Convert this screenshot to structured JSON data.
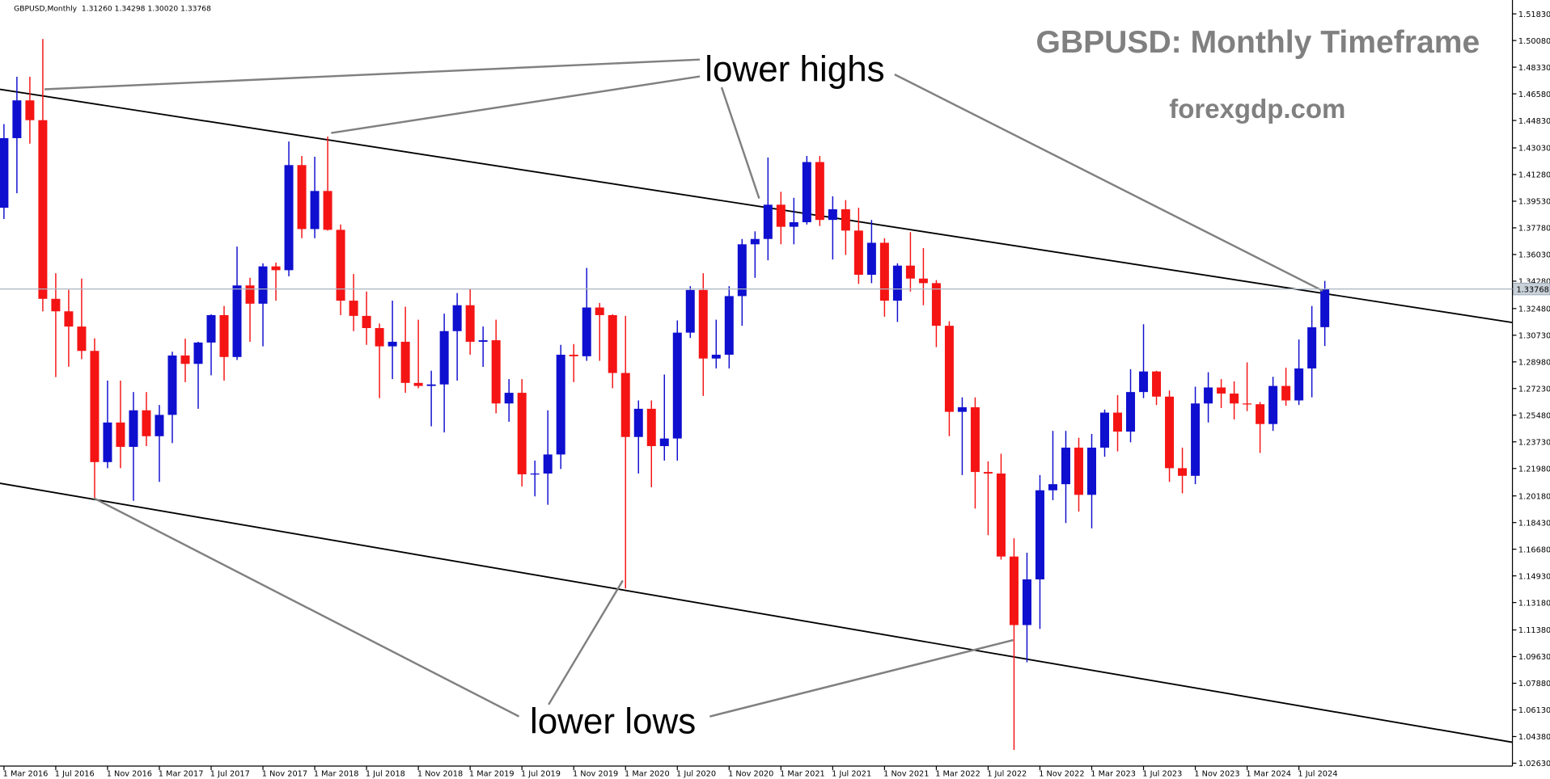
{
  "chart_data": {
    "type": "candlestick",
    "header": "GBPUSD,Monthly  1.31260 1.34298 1.30020 1.33768",
    "title": "GBPUSD: Monthly Timeframe",
    "subtitle": "forexgdp.com",
    "annotations": [
      "lower highs",
      "lower lows"
    ],
    "up_color": "#0f0fcf",
    "down_color": "#f51414",
    "categories": [
      "1 Mar 2016",
      null,
      null,
      null,
      "1 Jul 2016",
      null,
      null,
      null,
      "1 Nov 2016",
      null,
      null,
      null,
      "1 Mar 2017",
      null,
      null,
      null,
      "1 Jul 2017",
      null,
      null,
      null,
      "1 Nov 2017",
      null,
      null,
      null,
      "1 Mar 2018",
      null,
      null,
      null,
      "1 Jul 2018",
      null,
      null,
      null,
      "1 Nov 2018",
      null,
      null,
      null,
      "1 Mar 2019",
      null,
      null,
      null,
      "1 Jul 2019",
      null,
      null,
      null,
      "1 Nov 2019",
      null,
      null,
      null,
      "1 Mar 2020",
      null,
      null,
      null,
      "1 Jul 2020",
      null,
      null,
      null,
      "1 Nov 2020",
      null,
      null,
      null,
      "1 Mar 2021",
      null,
      null,
      null,
      "1 Jul 2021",
      null,
      null,
      null,
      "1 Nov 2021",
      null,
      null,
      null,
      "1 Mar 2022",
      null,
      null,
      null,
      "1 Jul 2022",
      null,
      null,
      null,
      "1 Nov 2022",
      null,
      null,
      null,
      "1 Mar 2023",
      null,
      null,
      null,
      "1 Jul 2023",
      null,
      null,
      null,
      "1 Nov 2023",
      null,
      null,
      null,
      "1 Mar 2024",
      null,
      null,
      null,
      "1 Jul 2024",
      null,
      null
    ],
    "open": [
      1.391,
      1.4367,
      1.4615,
      1.4485,
      1.3312,
      1.323,
      1.313,
      1.297,
      1.224,
      1.25,
      1.234,
      1.258,
      1.241,
      1.255,
      1.294,
      1.2885,
      1.3025,
      1.3205,
      1.293,
      1.34,
      1.328,
      1.3525,
      1.35,
      1.419,
      1.377,
      1.402,
      1.3765,
      1.33,
      1.32,
      1.312,
      1.3,
      1.303,
      1.276,
      1.274,
      1.275,
      1.31,
      1.327,
      1.303,
      1.304,
      1.2625,
      1.2695,
      1.216,
      1.2165,
      1.229,
      1.2945,
      1.2935,
      1.3255,
      1.3205,
      1.2825,
      1.2405,
      1.259,
      1.2345,
      1.2395,
      1.309,
      1.337,
      1.292,
      1.2945,
      1.333,
      1.367,
      1.3705,
      1.393,
      1.3785,
      1.3815,
      1.421,
      1.383,
      1.39,
      1.376,
      1.347,
      1.368,
      1.33,
      1.353,
      1.3445,
      1.3415,
      1.3135,
      1.257,
      1.26,
      1.2175,
      1.2165,
      1.162,
      1.117,
      1.147,
      1.2055,
      1.2095,
      1.2335,
      1.2025,
      1.2335,
      1.2565,
      1.244,
      1.27,
      1.2835,
      1.267,
      1.22,
      1.215,
      1.2625,
      1.273,
      1.269,
      1.2625,
      1.262,
      1.249,
      1.274,
      1.2645,
      1.2855,
      1.3126
    ],
    "high": [
      1.4459,
      1.477,
      1.477,
      1.5018,
      1.348,
      1.3371,
      1.3445,
      1.3053,
      1.2775,
      1.2775,
      1.27,
      1.27,
      1.2615,
      1.2965,
      1.305,
      1.303,
      1.321,
      1.3265,
      1.3655,
      1.345,
      1.3545,
      1.355,
      1.4345,
      1.425,
      1.4245,
      1.4377,
      1.38,
      1.3475,
      1.336,
      1.315,
      1.33,
      1.326,
      1.3175,
      1.284,
      1.3215,
      1.335,
      1.338,
      1.313,
      1.3175,
      1.2785,
      1.2785,
      1.225,
      1.258,
      1.301,
      1.3015,
      1.3515,
      1.3285,
      1.321,
      1.32,
      1.2645,
      1.2645,
      1.2815,
      1.317,
      1.3395,
      1.348,
      1.3175,
      1.3395,
      1.3705,
      1.3755,
      1.424,
      1.4015,
      1.3975,
      1.425,
      1.425,
      1.3985,
      1.396,
      1.391,
      1.383,
      1.371,
      1.3545,
      1.375,
      1.3645,
      1.3435,
      1.3165,
      1.2665,
      1.2665,
      1.2245,
      1.2295,
      1.174,
      1.1645,
      1.2155,
      1.2445,
      1.2445,
      1.24,
      1.2425,
      1.2585,
      1.268,
      1.285,
      1.3145,
      1.284,
      1.271,
      1.2335,
      1.2735,
      1.283,
      1.2785,
      1.277,
      1.2895,
      1.2635,
      1.28,
      1.286,
      1.3045,
      1.3265,
      1.34298
    ],
    "low": [
      1.3836,
      1.4005,
      1.4331,
      1.3229,
      1.2798,
      1.2866,
      1.2916,
      1.2,
      1.22,
      1.22,
      1.1986,
      1.2345,
      1.211,
      1.2365,
      1.2765,
      1.259,
      1.281,
      1.2775,
      1.291,
      1.303,
      1.3,
      1.33,
      1.346,
      1.371,
      1.371,
      1.376,
      1.3205,
      1.31,
      1.301,
      1.266,
      1.2785,
      1.2695,
      1.2725,
      1.2475,
      1.2435,
      1.2775,
      1.2945,
      1.2865,
      1.256,
      1.2505,
      1.208,
      1.2015,
      1.196,
      1.2195,
      1.2765,
      1.2905,
      1.2905,
      1.2725,
      1.141,
      1.2165,
      1.2075,
      1.225,
      1.225,
      1.3055,
      1.2675,
      1.2855,
      1.2855,
      1.3135,
      1.345,
      1.3565,
      1.367,
      1.367,
      1.38,
      1.379,
      1.357,
      1.36,
      1.341,
      1.3415,
      1.3195,
      1.316,
      1.336,
      1.327,
      1.2995,
      1.241,
      1.2155,
      1.1935,
      1.176,
      1.16,
      1.035,
      1.0925,
      1.1145,
      1.199,
      1.184,
      1.1915,
      1.1805,
      1.2275,
      1.231,
      1.237,
      1.266,
      1.2615,
      1.211,
      1.2035,
      1.2095,
      1.25,
      1.2595,
      1.252,
      1.2575,
      1.23,
      1.2445,
      1.261,
      1.2615,
      1.2665,
      1.3002
    ],
    "close": [
      1.4367,
      1.4615,
      1.4485,
      1.3312,
      1.323,
      1.313,
      1.297,
      1.224,
      1.25,
      1.234,
      1.258,
      1.241,
      1.255,
      1.294,
      1.2885,
      1.3025,
      1.3205,
      1.293,
      1.34,
      1.328,
      1.3525,
      1.35,
      1.419,
      1.377,
      1.402,
      1.3765,
      1.33,
      1.32,
      1.312,
      1.3,
      1.303,
      1.276,
      1.274,
      1.275,
      1.31,
      1.327,
      1.303,
      1.304,
      1.2625,
      1.2695,
      1.216,
      1.2165,
      1.229,
      1.2945,
      1.2935,
      1.3255,
      1.3205,
      1.2825,
      1.2405,
      1.259,
      1.2345,
      1.2395,
      1.309,
      1.337,
      1.292,
      1.2945,
      1.333,
      1.367,
      1.3705,
      1.393,
      1.3785,
      1.3815,
      1.421,
      1.383,
      1.39,
      1.376,
      1.347,
      1.368,
      1.33,
      1.353,
      1.3445,
      1.3415,
      1.3135,
      1.257,
      1.26,
      1.2175,
      1.2165,
      1.162,
      1.117,
      1.147,
      1.2055,
      1.2095,
      1.2335,
      1.2025,
      1.2335,
      1.2565,
      1.244,
      1.27,
      1.2835,
      1.267,
      1.22,
      1.215,
      1.2625,
      1.273,
      1.269,
      1.2625,
      1.262,
      1.249,
      1.274,
      1.2645,
      1.2855,
      1.3125,
      1.33768
    ],
    "last_price": {
      "value": 1.33768,
      "label": "1.33768"
    },
    "ylim": [
      1.0244,
      1.5274
    ],
    "yticks": [
      {
        "value": 1.5183,
        "label": "1.51830"
      },
      {
        "value": 1.5008,
        "label": "1.50080"
      },
      {
        "value": 1.4833,
        "label": "1.48330"
      },
      {
        "value": 1.4658,
        "label": "1.46580"
      },
      {
        "value": 1.4483,
        "label": "1.44830"
      },
      {
        "value": 1.4303,
        "label": "1.43030"
      },
      {
        "value": 1.4128,
        "label": "1.41280"
      },
      {
        "value": 1.3953,
        "label": "1.39530"
      },
      {
        "value": 1.3778,
        "label": "1.37780"
      },
      {
        "value": 1.3603,
        "label": "1.36030"
      },
      {
        "value": 1.3428,
        "label": "1.34280"
      },
      {
        "value": 1.3248,
        "label": "1.32480"
      },
      {
        "value": 1.3073,
        "label": "1.30730"
      },
      {
        "value": 1.2898,
        "label": "1.28980"
      },
      {
        "value": 1.2723,
        "label": "1.27230"
      },
      {
        "value": 1.2548,
        "label": "1.25480"
      },
      {
        "value": 1.2373,
        "label": "1.23730"
      },
      {
        "value": 1.2198,
        "label": "1.21980"
      },
      {
        "value": 1.2018,
        "label": "1.20180"
      },
      {
        "value": 1.1843,
        "label": "1.18430"
      },
      {
        "value": 1.1668,
        "label": "1.16680"
      },
      {
        "value": 1.1493,
        "label": "1.14930"
      },
      {
        "value": 1.1318,
        "label": "1.13180"
      },
      {
        "value": 1.1138,
        "label": "1.11380"
      },
      {
        "value": 1.0963,
        "label": "1.09630"
      },
      {
        "value": 1.0788,
        "label": "1.07880"
      },
      {
        "value": 1.0613,
        "label": "1.06130"
      },
      {
        "value": 1.0438,
        "label": "1.04380"
      },
      {
        "value": 1.0263,
        "label": "1.02630"
      }
    ]
  }
}
